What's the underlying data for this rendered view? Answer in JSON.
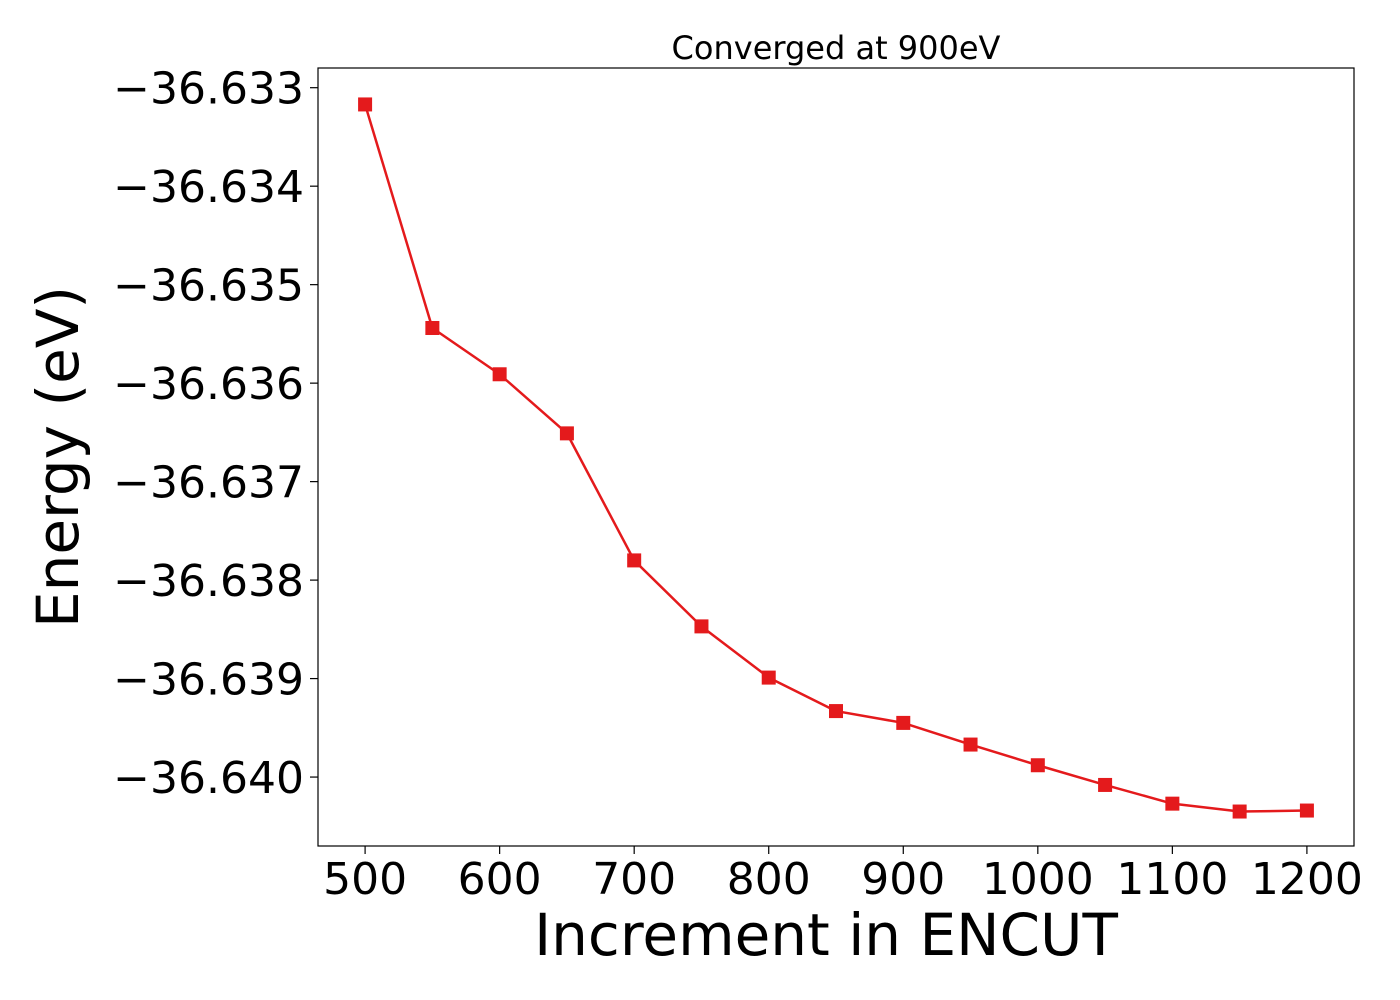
{
  "chart_data": {
    "type": "line",
    "title": "Converged at 900eV",
    "xlabel": "Increment in ENCUT",
    "ylabel": "Energy (eV)",
    "xlim": [
      465,
      1235
    ],
    "ylim": [
      -36.6407,
      -36.6328
    ],
    "x_ticks": [
      500,
      600,
      700,
      800,
      900,
      1000,
      1100,
      1200
    ],
    "x_tick_labels": [
      "500",
      "600",
      "700",
      "800",
      "900",
      "1000",
      "1100",
      "1200"
    ],
    "y_ticks": [
      -36.633,
      -36.634,
      -36.635,
      -36.636,
      -36.637,
      -36.638,
      -36.639,
      -36.64
    ],
    "y_tick_labels": [
      "−36.633",
      "−36.634",
      "−36.635",
      "−36.636",
      "−36.637",
      "−36.638",
      "−36.639",
      "−36.640"
    ],
    "grid": false,
    "legend": "none",
    "series": [
      {
        "color": "#e41a1c",
        "marker": "square",
        "x": [
          500,
          550,
          600,
          650,
          700,
          750,
          800,
          850,
          900,
          950,
          1000,
          1050,
          1100,
          1150,
          1200
        ],
        "y": [
          -36.63317,
          -36.63544,
          -36.63591,
          -36.63651,
          -36.6378,
          -36.63847,
          -36.63899,
          -36.63933,
          -36.63945,
          -36.63967,
          -36.63988,
          -36.64008,
          -36.64027,
          -36.64035,
          -36.64034
        ]
      }
    ]
  }
}
